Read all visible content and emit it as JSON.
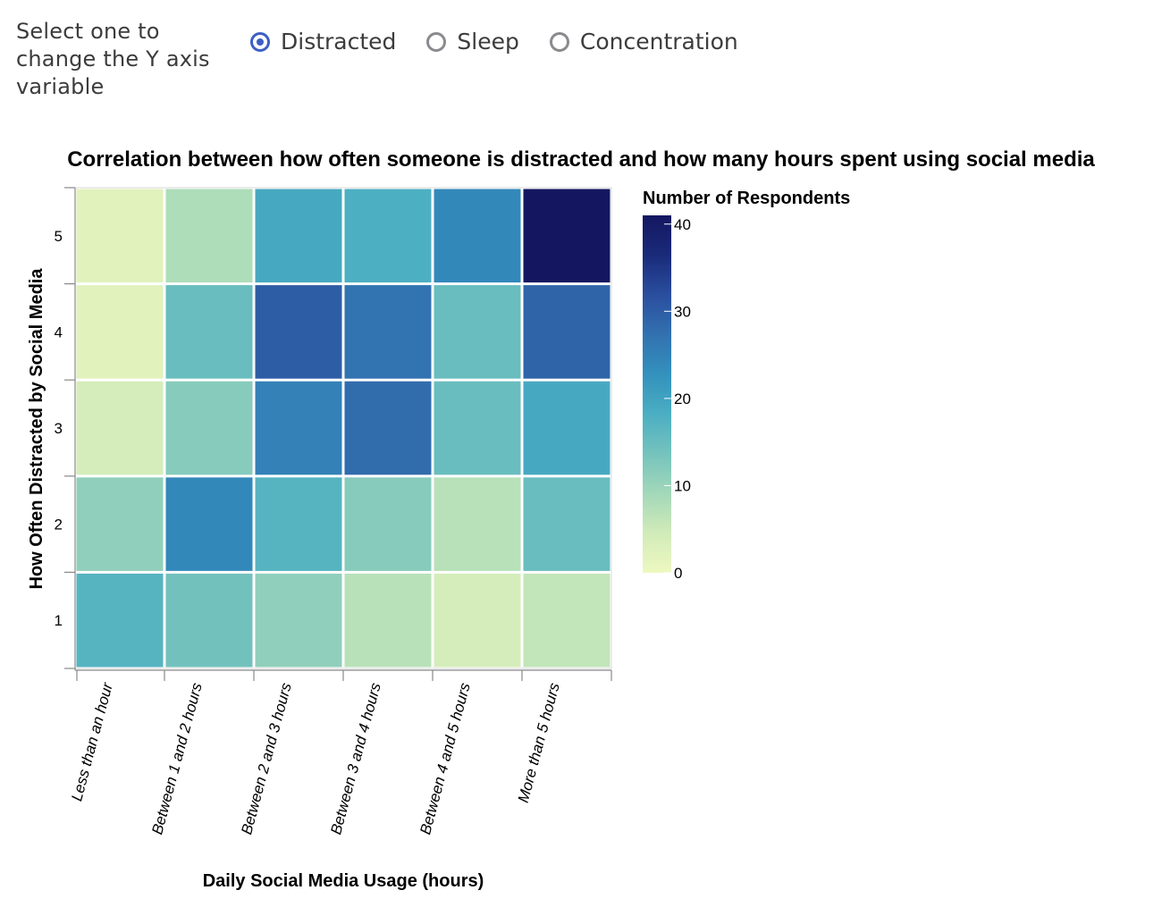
{
  "controls": {
    "prompt": "Select one to change the Y axis variable",
    "options": [
      {
        "label": "Distracted",
        "selected": true
      },
      {
        "label": "Sleep",
        "selected": false
      },
      {
        "label": "Concentration",
        "selected": false
      }
    ]
  },
  "chart_data": {
    "type": "heatmap",
    "title": "Correlation between how often someone is distracted and how many hours spent using social media",
    "xlabel": "Daily Social Media Usage (hours)",
    "ylabel": "How Often Distracted by Social Media",
    "x_categories": [
      "Less than an hour",
      "Between 1 and 2 hours",
      "Between 2 and 3 hours",
      "Between 3 and 4 hours",
      "Between 4 and 5 hours",
      "More than 5 hours"
    ],
    "y_categories": [
      "5",
      "4",
      "3",
      "2",
      "1"
    ],
    "values": [
      [
        2,
        8,
        19,
        18,
        24,
        41
      ],
      [
        2,
        15,
        30,
        27,
        15,
        29
      ],
      [
        4,
        12,
        25,
        28,
        15,
        19
      ],
      [
        11,
        24,
        17,
        12,
        7,
        15
      ],
      [
        17,
        14,
        11,
        7,
        4,
        6
      ]
    ],
    "legend": {
      "title": "Number of Respondents",
      "ticks": [
        0,
        10,
        20,
        30,
        40
      ],
      "domain": [
        0,
        41
      ],
      "placement": "right"
    },
    "color_scheme": [
      "#eef8c1",
      "#d1ebb9",
      "#a3d8b9",
      "#75c3bd",
      "#4baec2",
      "#3391bd",
      "#3271b0",
      "#2a4e9e",
      "#1a2a7a",
      "#141760"
    ]
  }
}
